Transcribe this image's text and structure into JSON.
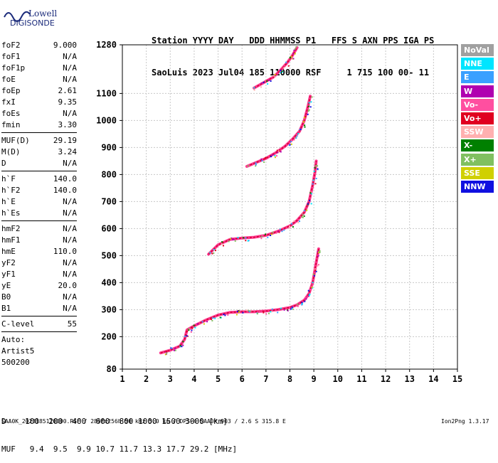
{
  "logo": {
    "line1": "Lowell",
    "line2": "DIGISONDE"
  },
  "header": {
    "line1": "Station YYYY DAY   DDD HHMMSS P1   FFS S AXN PPS IGA PS",
    "line2": "SaoLuis 2023 Jul04 185 110000 RSF     1 715 100 00- 11"
  },
  "params": {
    "group1": [
      {
        "label": "foF2",
        "value": "9.000"
      },
      {
        "label": "foF1",
        "value": "N/A"
      },
      {
        "label": "foF1p",
        "value": "N/A"
      },
      {
        "label": "foE",
        "value": "N/A"
      },
      {
        "label": "foEp",
        "value": "2.61"
      },
      {
        "label": "fxI",
        "value": "9.35"
      },
      {
        "label": "foEs",
        "value": "N/A"
      },
      {
        "label": "fmin",
        "value": "3.30"
      }
    ],
    "group2": [
      {
        "label": "MUF(D)",
        "value": "29.19"
      },
      {
        "label": "M(D)",
        "value": "3.24"
      },
      {
        "label": "D",
        "value": "N/A"
      }
    ],
    "group3": [
      {
        "label": "h`F",
        "value": "140.0"
      },
      {
        "label": "h`F2",
        "value": "140.0"
      },
      {
        "label": "h`E",
        "value": "N/A"
      },
      {
        "label": "h`Es",
        "value": "N/A"
      }
    ],
    "group4": [
      {
        "label": "hmF2",
        "value": "N/A"
      },
      {
        "label": "hmF1",
        "value": "N/A"
      },
      {
        "label": "hmE",
        "value": "110.0"
      },
      {
        "label": "yF2",
        "value": "N/A"
      },
      {
        "label": "yF1",
        "value": "N/A"
      },
      {
        "label": "yE",
        "value": "20.0"
      },
      {
        "label": "B0",
        "value": "N/A"
      },
      {
        "label": "B1",
        "value": "N/A"
      }
    ],
    "clevel": {
      "label": "C-level",
      "value": "55"
    },
    "auto": [
      "Auto:",
      "Artist5",
      "500200"
    ]
  },
  "legend": [
    {
      "label": "NoVal",
      "color": "#a0a0a0"
    },
    {
      "label": "NNE",
      "color": "#00e5ff"
    },
    {
      "label": "E",
      "color": "#3aa0ff"
    },
    {
      "label": "W",
      "color": "#b000b0"
    },
    {
      "label": "Vo-",
      "color": "#ff4fa0"
    },
    {
      "label": "Vo+",
      "color": "#e00020"
    },
    {
      "label": "SSW",
      "color": "#ffb0b0"
    },
    {
      "label": "X-",
      "color": "#008000"
    },
    {
      "label": "X+",
      "color": "#80c060"
    },
    {
      "label": "SSE",
      "color": "#d0d000"
    },
    {
      "label": "NNW",
      "color": "#1010e0"
    }
  ],
  "dtable": {
    "d_line": "D    100  200  400  600  800 1000 1500 3000 [km]",
    "muf_line": "MUF   9.4  9.5  9.9 10.7 11.7 13.3 17.7 29.2 [MHz]"
  },
  "footer": "SAA0K_2023185110000.RSF / 280fx256h 50 kHz 5.0 km / DPS-4 SAA0K 903 / 2.6 S 315.8 E",
  "version": "Ion2Png 1.3.17",
  "chart_data": {
    "type": "scatter",
    "xlim": [
      1,
      15
    ],
    "ylim": [
      80,
      1280
    ],
    "x_ticks": [
      1,
      2,
      3,
      4,
      5,
      6,
      7,
      8,
      9,
      10,
      11,
      12,
      13,
      14,
      15
    ],
    "y_ticks": [
      80,
      200,
      300,
      400,
      500,
      600,
      700,
      800,
      900,
      1000,
      1100,
      1280
    ],
    "grid": true,
    "traces": [
      {
        "name": "trace-1",
        "points": [
          [
            2.6,
            140
          ],
          [
            3.0,
            150
          ],
          [
            3.4,
            165
          ],
          [
            3.6,
            190
          ],
          [
            3.7,
            225
          ],
          [
            4.0,
            240
          ],
          [
            4.5,
            262
          ],
          [
            5.0,
            280
          ],
          [
            5.5,
            290
          ],
          [
            6.0,
            292
          ],
          [
            6.5,
            292
          ],
          [
            7.0,
            295
          ],
          [
            7.5,
            300
          ],
          [
            8.0,
            308
          ],
          [
            8.3,
            318
          ],
          [
            8.6,
            335
          ],
          [
            8.8,
            360
          ],
          [
            8.95,
            400
          ],
          [
            9.05,
            450
          ],
          [
            9.15,
            500
          ],
          [
            9.2,
            525
          ]
        ]
      },
      {
        "name": "trace-2",
        "points": [
          [
            4.6,
            505
          ],
          [
            5.0,
            540
          ],
          [
            5.5,
            560
          ],
          [
            6.0,
            565
          ],
          [
            6.5,
            568
          ],
          [
            7.0,
            575
          ],
          [
            7.5,
            590
          ],
          [
            8.0,
            610
          ],
          [
            8.3,
            630
          ],
          [
            8.6,
            660
          ],
          [
            8.8,
            700
          ],
          [
            8.95,
            760
          ],
          [
            9.05,
            810
          ],
          [
            9.1,
            850
          ]
        ]
      },
      {
        "name": "trace-3",
        "points": [
          [
            6.2,
            830
          ],
          [
            6.6,
            845
          ],
          [
            7.0,
            860
          ],
          [
            7.4,
            880
          ],
          [
            7.8,
            905
          ],
          [
            8.1,
            930
          ],
          [
            8.4,
            960
          ],
          [
            8.6,
            1000
          ],
          [
            8.75,
            1050
          ],
          [
            8.85,
            1090
          ]
        ]
      },
      {
        "name": "trace-4",
        "points": [
          [
            6.5,
            1120
          ],
          [
            6.9,
            1140
          ],
          [
            7.3,
            1160
          ],
          [
            7.6,
            1185
          ],
          [
            7.9,
            1215
          ],
          [
            8.1,
            1240
          ],
          [
            8.3,
            1270
          ]
        ]
      }
    ]
  }
}
